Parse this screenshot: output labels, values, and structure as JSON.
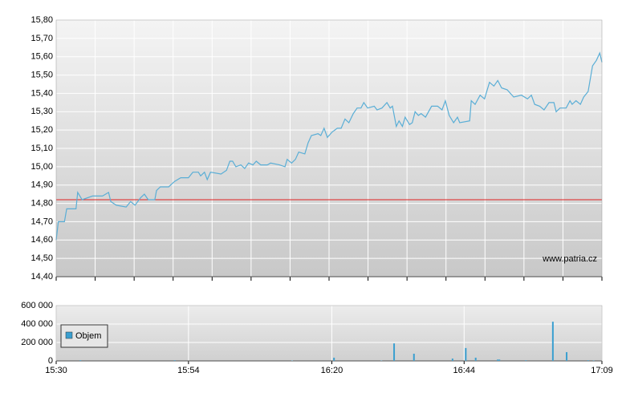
{
  "chart_data": [
    {
      "type": "line",
      "xlim": [
        930,
        1029
      ],
      "ylim": [
        14.4,
        15.8
      ],
      "yticks": [
        {
          "value": 14.4,
          "label": "14,40"
        },
        {
          "value": 14.5,
          "label": "14,50"
        },
        {
          "value": 14.6,
          "label": "14,60"
        },
        {
          "value": 14.7,
          "label": "14,70"
        },
        {
          "value": 14.8,
          "label": "14,80"
        },
        {
          "value": 14.9,
          "label": "14,90"
        },
        {
          "value": 15.0,
          "label": "15,00"
        },
        {
          "value": 15.1,
          "label": "15,10"
        },
        {
          "value": 15.2,
          "label": "15,20"
        },
        {
          "value": 15.3,
          "label": "15,30"
        },
        {
          "value": 15.4,
          "label": "15,40"
        },
        {
          "value": 15.5,
          "label": "15,50"
        },
        {
          "value": 15.6,
          "label": "15,60"
        },
        {
          "value": 15.7,
          "label": "15,70"
        },
        {
          "value": 15.8,
          "label": "15,80"
        }
      ],
      "grid": true,
      "color": "#5aaed6",
      "reference_line": {
        "value": 14.82,
        "color": "#e02020"
      },
      "annotation": "www.patria.cz",
      "x": [
        930,
        930.4,
        931.5,
        931.9,
        933.6,
        933.9,
        934.7,
        936.6,
        938.4,
        939.5,
        939.9,
        940.9,
        942.7,
        943.5,
        944.3,
        945.3,
        946.0,
        946.7,
        947.9,
        948.2,
        948.9,
        950.4,
        951.5,
        952.6,
        954.0,
        954.8,
        955.8,
        956.2,
        956.9,
        957.4,
        958.0,
        959.9,
        960.9,
        961.5,
        962.0,
        962.6,
        963.5,
        964.2,
        964.9,
        965.7,
        966.3,
        967.1,
        968.3,
        968.9,
        970.5,
        971.5,
        971.9,
        972.7,
        973.4,
        974.0,
        975.1,
        975.7,
        976.3,
        977.5,
        978.0,
        978.6,
        979.2,
        980.1,
        981.0,
        981.7,
        982.4,
        983.1,
        983.9,
        984.6,
        985.3,
        985.8,
        986.5,
        987.7,
        988.2,
        989.1,
        990.0,
        990.6,
        991.0,
        991.7,
        992.2,
        992.8,
        993.3,
        994.1,
        994.6,
        995.1,
        995.7,
        996.2,
        997.0,
        998.1,
        999.2,
        1000.0,
        1000.6,
        1001.3,
        1002.1,
        1002.8,
        1003.2,
        1005.0,
        1005.3,
        1006.0,
        1006.9,
        1007.7,
        1008.6,
        1009.4,
        1010.1,
        1010.8,
        1011.8,
        1013.0,
        1014.4,
        1015.5,
        1016.2,
        1016.8,
        1017.7,
        1018.5,
        1019.4,
        1020.3,
        1020.7,
        1021.4,
        1022.5,
        1023.2,
        1023.6,
        1024.3,
        1025.1,
        1025.7,
        1026.5,
        1027.3,
        1028.0,
        1028.6,
        1029
      ],
      "values": [
        14.6,
        14.7,
        14.7,
        14.77,
        14.77,
        14.86,
        14.82,
        14.84,
        14.84,
        14.86,
        14.81,
        14.79,
        14.78,
        14.81,
        14.79,
        14.83,
        14.85,
        14.82,
        14.82,
        14.87,
        14.89,
        14.89,
        14.92,
        14.94,
        14.94,
        14.97,
        14.97,
        14.95,
        14.97,
        14.93,
        14.97,
        14.96,
        14.98,
        15.03,
        15.03,
        15.0,
        15.01,
        14.99,
        15.02,
        15.01,
        15.03,
        15.01,
        15.01,
        15.02,
        15.01,
        15.0,
        15.04,
        15.02,
        15.04,
        15.08,
        15.07,
        15.13,
        15.17,
        15.18,
        15.17,
        15.21,
        15.16,
        15.19,
        15.21,
        15.21,
        15.26,
        15.24,
        15.29,
        15.32,
        15.32,
        15.35,
        15.32,
        15.33,
        15.31,
        15.32,
        15.35,
        15.32,
        15.33,
        15.22,
        15.25,
        15.22,
        15.27,
        15.23,
        15.24,
        15.3,
        15.28,
        15.29,
        15.27,
        15.33,
        15.33,
        15.31,
        15.36,
        15.28,
        15.24,
        15.27,
        15.24,
        15.25,
        15.36,
        15.34,
        15.39,
        15.37,
        15.46,
        15.44,
        15.47,
        15.43,
        15.42,
        15.38,
        15.39,
        15.37,
        15.39,
        15.34,
        15.33,
        15.31,
        15.35,
        15.35,
        15.3,
        15.32,
        15.32,
        15.36,
        15.34,
        15.36,
        15.34,
        15.38,
        15.41,
        15.55,
        15.58,
        15.62,
        15.57
      ]
    },
    {
      "type": "bar",
      "xlim": [
        930,
        1029
      ],
      "xticks": [
        {
          "value": 930,
          "label": "15:30"
        },
        {
          "value": 954,
          "label": "15:54"
        },
        {
          "value": 980,
          "label": "16:20"
        },
        {
          "value": 1004,
          "label": "16:44"
        },
        {
          "value": 1029,
          "label": "17:09"
        }
      ],
      "ylim": [
        0,
        600000
      ],
      "yticks": [
        0,
        {
          "value": 200000,
          "label": "200 000"
        },
        {
          "value": 400000,
          "label": "400 000"
        },
        {
          "value": 600000,
          "label": "600 000"
        }
      ],
      "grid": true,
      "legend": "upper-left",
      "x": [
        934.4,
        951.5,
        972.8,
        980.4,
        989,
        991.3,
        994.9,
        1001.9,
        1004.3,
        1006.1,
        1010.1,
        1010.4,
        1015.2,
        1020.1,
        1022.6,
        1026.5,
        1027.5
      ],
      "series": [
        {
          "name": "Objem",
          "color": "#3a9fd0",
          "values": [
            8000,
            8000,
            5000,
            35000,
            5000,
            190000,
            78000,
            25000,
            140000,
            35000,
            15000,
            15000,
            8000,
            425000,
            95000,
            8000,
            6000
          ]
        }
      ]
    }
  ]
}
